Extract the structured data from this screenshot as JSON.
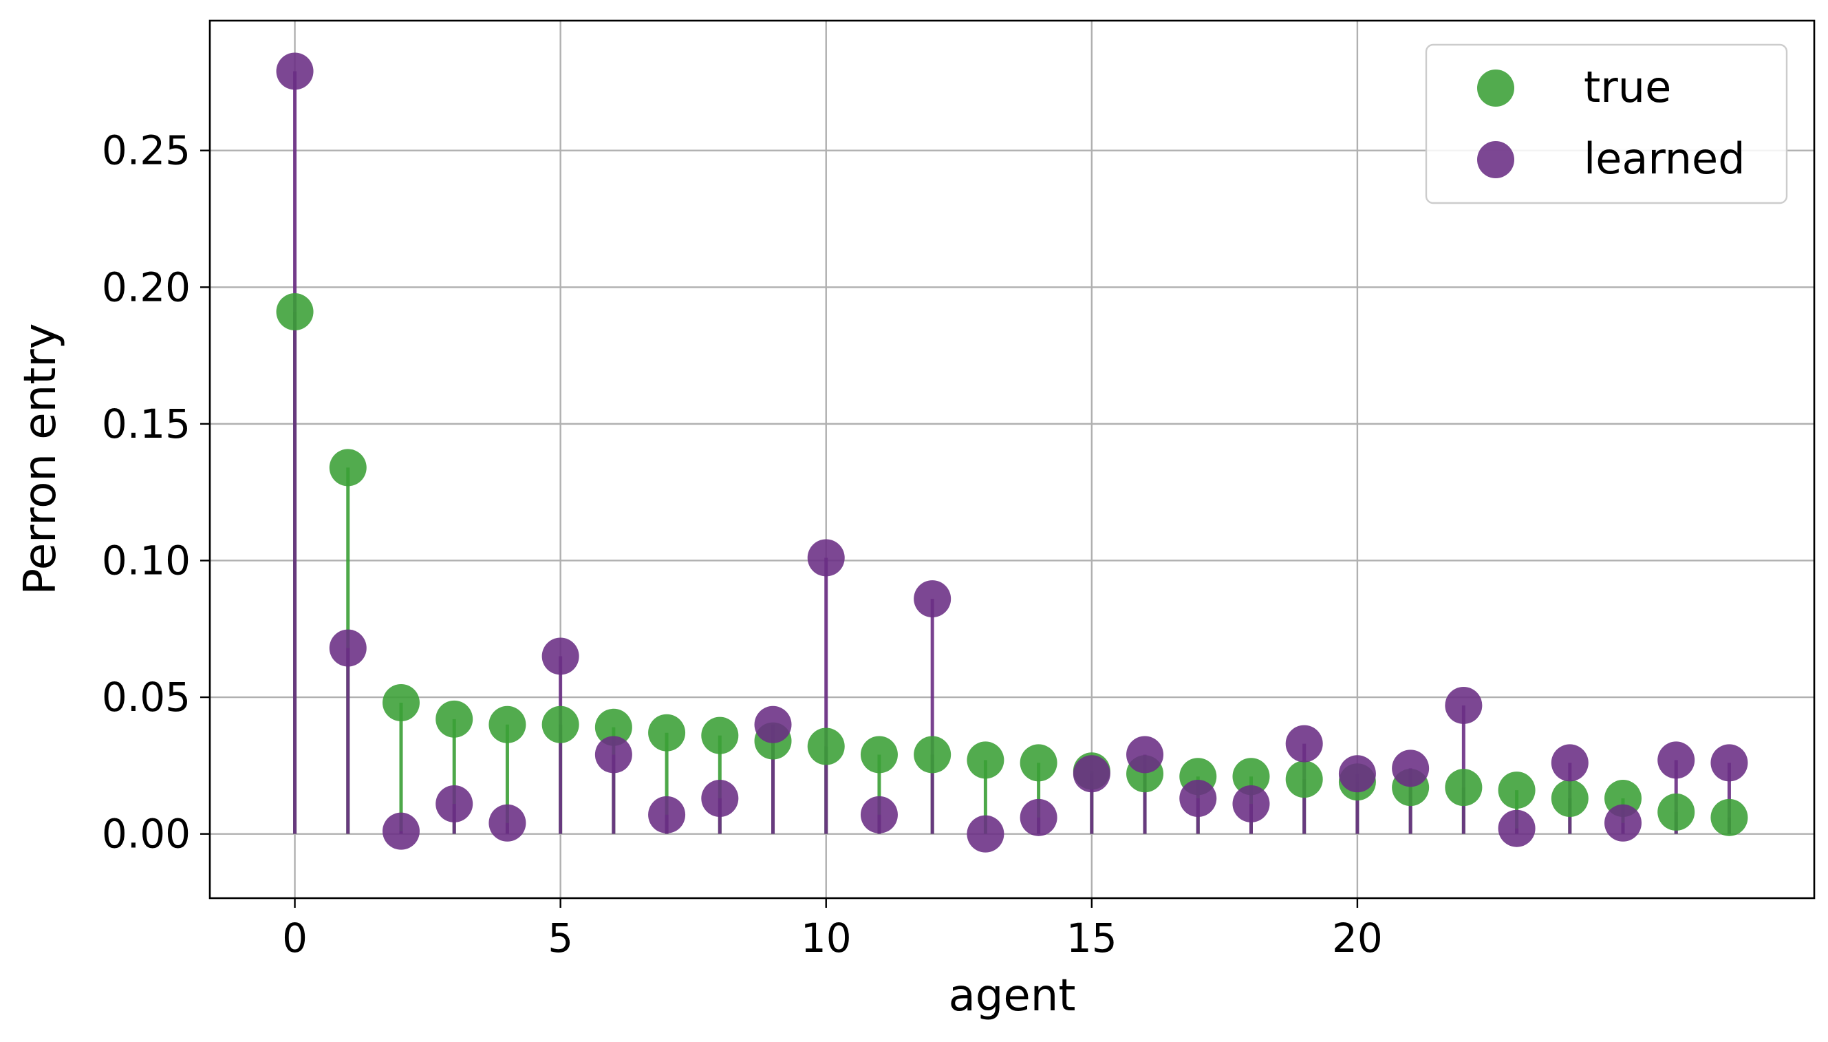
{
  "chart_data": {
    "type": "scatter",
    "style": "stem",
    "title": "",
    "xlabel": "agent",
    "ylabel": "Perron entry",
    "xlim": [
      -1.6,
      28.6
    ],
    "ylim": [
      -0.0235,
      0.2975
    ],
    "xticks": [
      0,
      5,
      10,
      15,
      20
    ],
    "yticks": [
      0.0,
      0.05,
      0.1,
      0.15,
      0.2,
      0.25
    ],
    "xtick_labels": [
      "0",
      "5",
      "10",
      "15",
      "20"
    ],
    "ytick_labels": [
      "0.00",
      "0.05",
      "0.10",
      "0.15",
      "0.20",
      "0.25"
    ],
    "grid": true,
    "legend_position": "top-right",
    "x": [
      0,
      1,
      2,
      3,
      4,
      5,
      6,
      7,
      8,
      9,
      10,
      11,
      12,
      13,
      14,
      15,
      16,
      17,
      18,
      19,
      20,
      21,
      22,
      23,
      24,
      25,
      26,
      27
    ],
    "series": [
      {
        "name": "true",
        "color": "#3a9f35",
        "values": [
          0.191,
          0.134,
          0.048,
          0.042,
          0.04,
          0.04,
          0.039,
          0.037,
          0.036,
          0.034,
          0.032,
          0.029,
          0.029,
          0.027,
          0.026,
          0.023,
          0.022,
          0.021,
          0.021,
          0.02,
          0.019,
          0.017,
          0.017,
          0.016,
          0.013,
          0.013,
          0.008,
          0.006
        ]
      },
      {
        "name": "learned",
        "color": "#6a2e84",
        "values": [
          0.279,
          0.068,
          0.001,
          0.011,
          0.004,
          0.065,
          0.029,
          0.007,
          0.013,
          0.04,
          0.101,
          0.007,
          0.086,
          0.0,
          0.006,
          0.022,
          0.029,
          0.013,
          0.011,
          0.033,
          0.022,
          0.024,
          0.047,
          0.002,
          0.026,
          0.004,
          0.027,
          0.026
        ]
      }
    ]
  }
}
